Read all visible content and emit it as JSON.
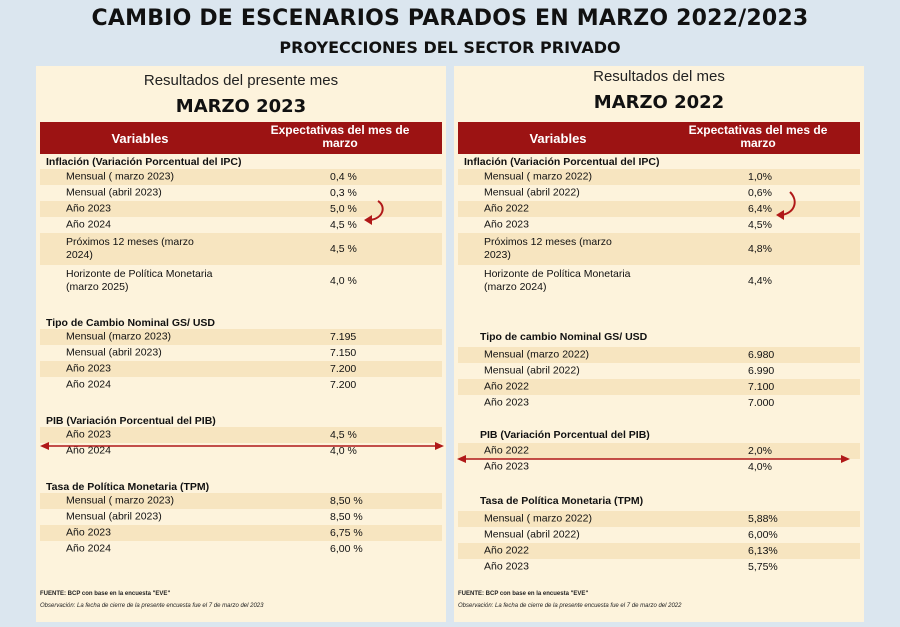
{
  "title": "CAMBIO DE ESCENARIOS PARADOS EN MARZO 2022/2023",
  "subtitle": "PROYECCIONES DEL SECTOR PRIVADO",
  "column_headers": {
    "variables": "Variables",
    "expectations": "Expectativas del mes de marzo"
  },
  "left": {
    "heading": "Resultados del presente mes",
    "period": "MARZO 2023",
    "inflation": {
      "title": "Inflación (Variación Porcentual del IPC)",
      "rows": [
        {
          "label": "Mensual ( marzo 2023)",
          "value": "0,4 %"
        },
        {
          "label": "Mensual (abril 2023)",
          "value": "0,3 %"
        },
        {
          "label": "Año 2023",
          "value": "5,0 %"
        },
        {
          "label": "Año 2024",
          "value": "4,5 %"
        },
        {
          "label": "Próximos 12 meses (marzo 2024)",
          "value": "4,5 %"
        },
        {
          "label": "Horizonte de Política Monetaria (marzo 2025)",
          "value": "4,0 %"
        }
      ]
    },
    "exchange": {
      "title": "Tipo de Cambio Nominal GS/ USD",
      "rows": [
        {
          "label": "Mensual (marzo 2023)",
          "value": "7.195"
        },
        {
          "label": "Mensual (abril 2023)",
          "value": "7.150"
        },
        {
          "label": "Año 2023",
          "value": "7.200"
        },
        {
          "label": "Año 2024",
          "value": "7.200"
        }
      ]
    },
    "pib": {
      "title": "PIB (Variación Porcentual del PIB)",
      "rows": [
        {
          "label": "Año 2023",
          "value": "4,5 %"
        },
        {
          "label": "Año 2024",
          "value": "4,0 %"
        }
      ]
    },
    "tpm": {
      "title": "Tasa de Política Monetaria (TPM)",
      "rows": [
        {
          "label": "Mensual ( marzo 2023)",
          "value": "8,50 %"
        },
        {
          "label": "Mensual (abril 2023)",
          "value": "8,50 %"
        },
        {
          "label": "Año 2023",
          "value": "6,75 %"
        },
        {
          "label": "Año 2024",
          "value": "6,00 %"
        }
      ]
    },
    "source": "FUENTE: BCP con base en la encuesta \"EVE\"",
    "note": "Observación: La fecha de cierre de la presente encuesta fue el 7 de marzo del 2023"
  },
  "right": {
    "heading": "Resultados del mes",
    "period": "MARZO 2022",
    "inflation": {
      "title": "Inflación (Variación Porcentual del IPC)",
      "rows": [
        {
          "label": "Mensual ( marzo 2022)",
          "value": "1,0%"
        },
        {
          "label": "Mensual (abril 2022)",
          "value": "0,6%"
        },
        {
          "label": "Año 2022",
          "value": "6,4%"
        },
        {
          "label": "Año 2023",
          "value": "4,5%"
        },
        {
          "label": "Próximos 12 meses (marzo 2023)",
          "value": "4,8%"
        },
        {
          "label": "Horizonte de Política Monetaria (marzo 2024)",
          "value": "4,4%"
        }
      ]
    },
    "exchange": {
      "title": "Tipo de cambio Nominal GS/ USD",
      "rows": [
        {
          "label": "Mensual (marzo 2022)",
          "value": "6.980"
        },
        {
          "label": "Mensual (abril 2022)",
          "value": "6.990"
        },
        {
          "label": "Año 2022",
          "value": "7.100"
        },
        {
          "label": "Año 2023",
          "value": "7.000"
        }
      ]
    },
    "pib": {
      "title": "PIB (Variación Porcentual del PIB)",
      "rows": [
        {
          "label": "Año 2022",
          "value": "2,0%"
        },
        {
          "label": "Año 2023",
          "value": "4,0%"
        }
      ]
    },
    "tpm": {
      "title": "Tasa de Política Monetaria (TPM)",
      "rows": [
        {
          "label": "Mensual ( marzo 2022)",
          "value": "5,88%"
        },
        {
          "label": "Mensual (abril 2022)",
          "value": "6,00%"
        },
        {
          "label": "Año 2022",
          "value": "6,13%"
        },
        {
          "label": "Año 2023",
          "value": "5,75%"
        }
      ]
    },
    "source": "FUENTE: BCP con base en la encuesta \"EVE\"",
    "note": "Observación: La fecha de cierre de la presente encuesta fue el 7 de marzo del 2022"
  },
  "colors": {
    "header_bg": "#9c1313",
    "panel_bg": "#fdf3dc",
    "row_shade": "#f7e5c0",
    "arrow": "#b01818",
    "page_bg": "#dbe6ef"
  },
  "icons": {
    "curved_arrow": "curved-arrow-icon",
    "double_arrow": "double-arrow-icon"
  }
}
